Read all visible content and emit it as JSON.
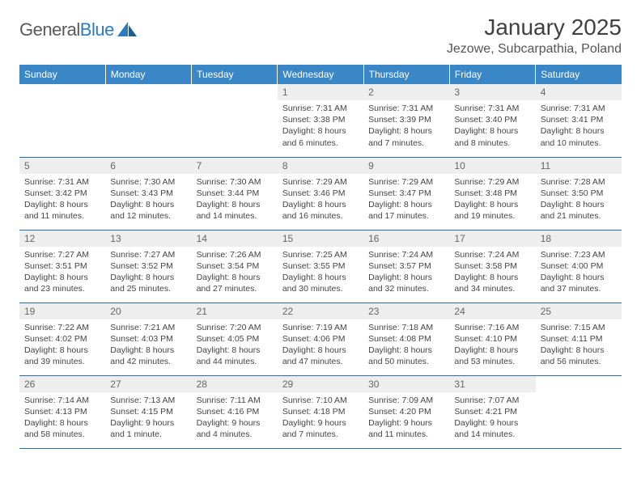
{
  "brand": {
    "part1": "General",
    "part2": "Blue"
  },
  "title": "January 2025",
  "location": "Jezowe, Subcarpathia, Poland",
  "colors": {
    "header_bg": "#3a87c8",
    "divider": "#2b6ca3",
    "daynum_bg": "#eeeeee",
    "text": "#444444",
    "logo_blue": "#2b7bbf"
  },
  "weekdays": [
    "Sunday",
    "Monday",
    "Tuesday",
    "Wednesday",
    "Thursday",
    "Friday",
    "Saturday"
  ],
  "grid": [
    [
      {
        "n": "",
        "info": ""
      },
      {
        "n": "",
        "info": ""
      },
      {
        "n": "",
        "info": ""
      },
      {
        "n": "1",
        "info": "Sunrise: 7:31 AM\nSunset: 3:38 PM\nDaylight: 8 hours and 6 minutes."
      },
      {
        "n": "2",
        "info": "Sunrise: 7:31 AM\nSunset: 3:39 PM\nDaylight: 8 hours and 7 minutes."
      },
      {
        "n": "3",
        "info": "Sunrise: 7:31 AM\nSunset: 3:40 PM\nDaylight: 8 hours and 8 minutes."
      },
      {
        "n": "4",
        "info": "Sunrise: 7:31 AM\nSunset: 3:41 PM\nDaylight: 8 hours and 10 minutes."
      }
    ],
    [
      {
        "n": "5",
        "info": "Sunrise: 7:31 AM\nSunset: 3:42 PM\nDaylight: 8 hours and 11 minutes."
      },
      {
        "n": "6",
        "info": "Sunrise: 7:30 AM\nSunset: 3:43 PM\nDaylight: 8 hours and 12 minutes."
      },
      {
        "n": "7",
        "info": "Sunrise: 7:30 AM\nSunset: 3:44 PM\nDaylight: 8 hours and 14 minutes."
      },
      {
        "n": "8",
        "info": "Sunrise: 7:29 AM\nSunset: 3:46 PM\nDaylight: 8 hours and 16 minutes."
      },
      {
        "n": "9",
        "info": "Sunrise: 7:29 AM\nSunset: 3:47 PM\nDaylight: 8 hours and 17 minutes."
      },
      {
        "n": "10",
        "info": "Sunrise: 7:29 AM\nSunset: 3:48 PM\nDaylight: 8 hours and 19 minutes."
      },
      {
        "n": "11",
        "info": "Sunrise: 7:28 AM\nSunset: 3:50 PM\nDaylight: 8 hours and 21 minutes."
      }
    ],
    [
      {
        "n": "12",
        "info": "Sunrise: 7:27 AM\nSunset: 3:51 PM\nDaylight: 8 hours and 23 minutes."
      },
      {
        "n": "13",
        "info": "Sunrise: 7:27 AM\nSunset: 3:52 PM\nDaylight: 8 hours and 25 minutes."
      },
      {
        "n": "14",
        "info": "Sunrise: 7:26 AM\nSunset: 3:54 PM\nDaylight: 8 hours and 27 minutes."
      },
      {
        "n": "15",
        "info": "Sunrise: 7:25 AM\nSunset: 3:55 PM\nDaylight: 8 hours and 30 minutes."
      },
      {
        "n": "16",
        "info": "Sunrise: 7:24 AM\nSunset: 3:57 PM\nDaylight: 8 hours and 32 minutes."
      },
      {
        "n": "17",
        "info": "Sunrise: 7:24 AM\nSunset: 3:58 PM\nDaylight: 8 hours and 34 minutes."
      },
      {
        "n": "18",
        "info": "Sunrise: 7:23 AM\nSunset: 4:00 PM\nDaylight: 8 hours and 37 minutes."
      }
    ],
    [
      {
        "n": "19",
        "info": "Sunrise: 7:22 AM\nSunset: 4:02 PM\nDaylight: 8 hours and 39 minutes."
      },
      {
        "n": "20",
        "info": "Sunrise: 7:21 AM\nSunset: 4:03 PM\nDaylight: 8 hours and 42 minutes."
      },
      {
        "n": "21",
        "info": "Sunrise: 7:20 AM\nSunset: 4:05 PM\nDaylight: 8 hours and 44 minutes."
      },
      {
        "n": "22",
        "info": "Sunrise: 7:19 AM\nSunset: 4:06 PM\nDaylight: 8 hours and 47 minutes."
      },
      {
        "n": "23",
        "info": "Sunrise: 7:18 AM\nSunset: 4:08 PM\nDaylight: 8 hours and 50 minutes."
      },
      {
        "n": "24",
        "info": "Sunrise: 7:16 AM\nSunset: 4:10 PM\nDaylight: 8 hours and 53 minutes."
      },
      {
        "n": "25",
        "info": "Sunrise: 7:15 AM\nSunset: 4:11 PM\nDaylight: 8 hours and 56 minutes."
      }
    ],
    [
      {
        "n": "26",
        "info": "Sunrise: 7:14 AM\nSunset: 4:13 PM\nDaylight: 8 hours and 58 minutes."
      },
      {
        "n": "27",
        "info": "Sunrise: 7:13 AM\nSunset: 4:15 PM\nDaylight: 9 hours and 1 minute."
      },
      {
        "n": "28",
        "info": "Sunrise: 7:11 AM\nSunset: 4:16 PM\nDaylight: 9 hours and 4 minutes."
      },
      {
        "n": "29",
        "info": "Sunrise: 7:10 AM\nSunset: 4:18 PM\nDaylight: 9 hours and 7 minutes."
      },
      {
        "n": "30",
        "info": "Sunrise: 7:09 AM\nSunset: 4:20 PM\nDaylight: 9 hours and 11 minutes."
      },
      {
        "n": "31",
        "info": "Sunrise: 7:07 AM\nSunset: 4:21 PM\nDaylight: 9 hours and 14 minutes."
      },
      {
        "n": "",
        "info": ""
      }
    ]
  ]
}
